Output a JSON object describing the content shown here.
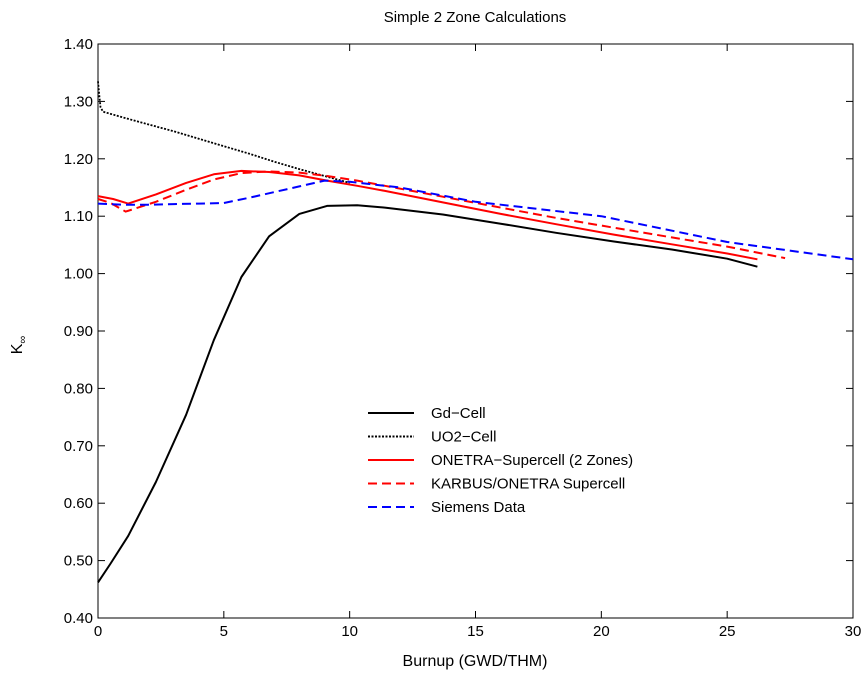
{
  "chart_data": {
    "type": "line",
    "title": "Simple 2 Zone Calculations",
    "xlabel": "Burnup (GWD/THM)",
    "ylabel": "K",
    "ylabel_subscript": "∞",
    "xlim": [
      0,
      30
    ],
    "ylim": [
      0.4,
      1.4
    ],
    "xticks": [
      0,
      5,
      10,
      15,
      20,
      25,
      30
    ],
    "xtick_labels": [
      "0",
      "5",
      "10",
      "15",
      "20",
      "25",
      "30"
    ],
    "yticks": [
      0.4,
      0.5,
      0.6,
      0.7,
      0.8,
      0.9,
      1.0,
      1.1,
      1.2,
      1.3,
      1.4
    ],
    "ytick_labels": [
      "0.40",
      "0.50",
      "0.60",
      "0.70",
      "0.80",
      "0.90",
      "1.00",
      "1.10",
      "1.20",
      "1.30",
      "1.40"
    ],
    "grid": false,
    "legend_position": "center",
    "series": [
      {
        "name": "Gd−Cell",
        "color": "#000000",
        "style": "solid",
        "x": [
          0,
          0.5,
          1.2,
          2.3,
          3.5,
          4.6,
          5.7,
          6.8,
          8.0,
          9.1,
          10.3,
          11.4,
          13.7,
          16.0,
          18.2,
          20.5,
          22.8,
          25.0,
          26.2
        ],
        "y": [
          0.462,
          0.495,
          0.543,
          0.637,
          0.754,
          0.884,
          0.994,
          1.065,
          1.104,
          1.118,
          1.119,
          1.115,
          1.103,
          1.087,
          1.071,
          1.056,
          1.042,
          1.026,
          1.012
        ]
      },
      {
        "name": "UO2−Cell",
        "color": "#000000",
        "style": "dotted",
        "x": [
          0,
          0.05,
          0.1,
          0.2,
          1.0,
          2.0,
          3.0,
          4.0,
          5.0,
          6.0,
          7.0,
          8.0,
          9.0,
          10.0
        ],
        "y": [
          1.335,
          1.31,
          1.29,
          1.282,
          1.272,
          1.26,
          1.248,
          1.235,
          1.222,
          1.209,
          1.195,
          1.182,
          1.17,
          1.158
        ]
      },
      {
        "name": "ONETRA−Supercell (2 Zones)",
        "color": "#ff0000",
        "style": "solid",
        "x": [
          0,
          0.6,
          1.2,
          2.3,
          3.5,
          4.6,
          5.7,
          6.8,
          8.0,
          9.1,
          10.3,
          11.4,
          13.7,
          16.0,
          18.2,
          20.5,
          22.8,
          25.0,
          26.2
        ],
        "y": [
          1.135,
          1.13,
          1.122,
          1.138,
          1.158,
          1.173,
          1.179,
          1.177,
          1.171,
          1.162,
          1.153,
          1.144,
          1.124,
          1.104,
          1.086,
          1.068,
          1.051,
          1.035,
          1.025
        ]
      },
      {
        "name": "KARBUS/ONETRA Supercell",
        "color": "#ff0000",
        "style": "dashed",
        "x": [
          0,
          0.5,
          1.1,
          2.3,
          3.5,
          4.6,
          5.7,
          6.8,
          8.0,
          9.1,
          10.3,
          11.4,
          13.7,
          16.0,
          18.2,
          20.5,
          22.8,
          25.0,
          27.3
        ],
        "y": [
          1.13,
          1.123,
          1.108,
          1.125,
          1.146,
          1.164,
          1.175,
          1.178,
          1.176,
          1.17,
          1.162,
          1.153,
          1.134,
          1.115,
          1.097,
          1.08,
          1.063,
          1.047,
          1.027
        ]
      },
      {
        "name": "Siemens Data",
        "color": "#0000ff",
        "style": "dashed",
        "x": [
          0,
          1,
          2,
          3,
          4,
          5,
          6,
          7,
          8,
          9,
          10,
          12,
          15,
          20,
          25,
          30
        ],
        "y": [
          1.122,
          1.12,
          1.12,
          1.121,
          1.122,
          1.123,
          1.132,
          1.142,
          1.152,
          1.162,
          1.16,
          1.15,
          1.125,
          1.1,
          1.055,
          1.025
        ]
      }
    ]
  }
}
